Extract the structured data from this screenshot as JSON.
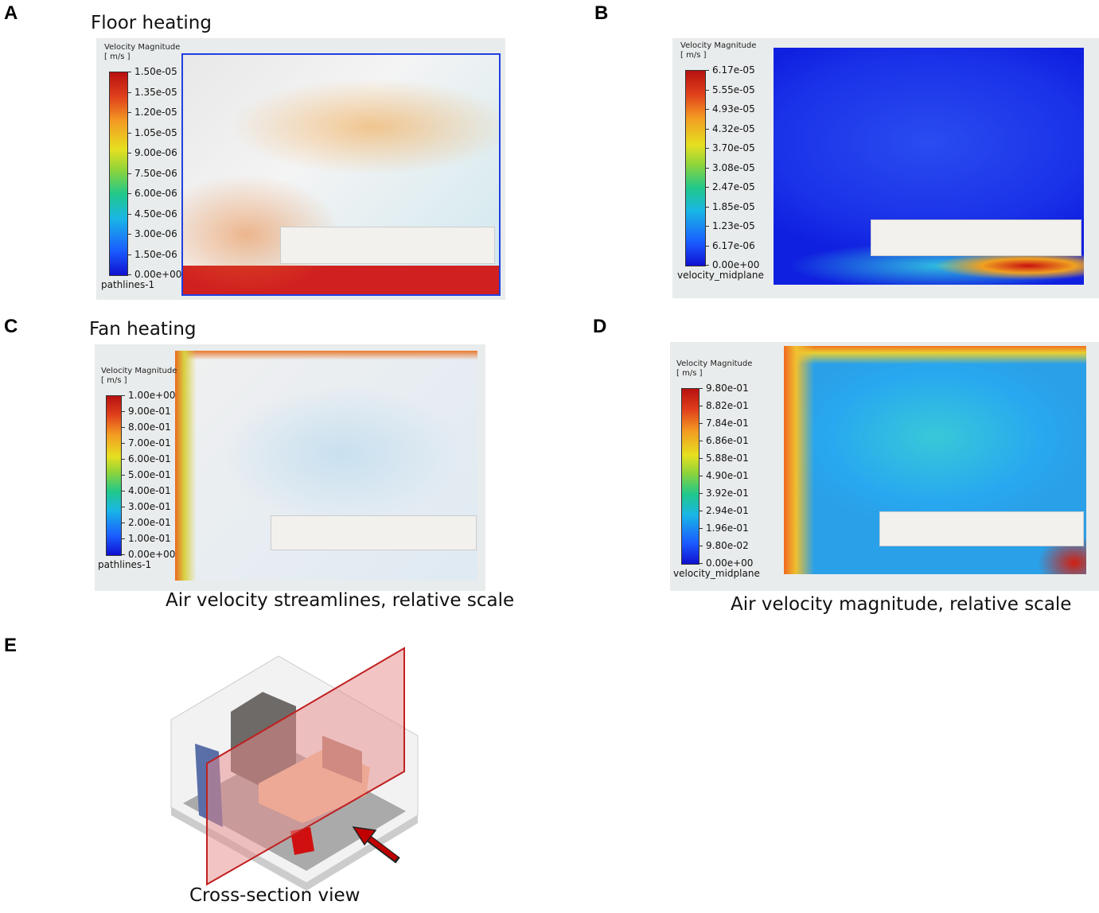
{
  "panels": {
    "A": {
      "letter": "A",
      "title": "Floor heating",
      "legend": {
        "title": "Velocity Magnitude",
        "unit": "[ m/s ]",
        "footer": "pathlines-1",
        "ticks": [
          "1.50e-05",
          "1.35e-05",
          "1.20e-05",
          "1.05e-05",
          "9.00e-06",
          "7.50e-06",
          "6.00e-06",
          "4.50e-06",
          "3.00e-06",
          "1.50e-06",
          "0.00e+00"
        ]
      }
    },
    "B": {
      "letter": "B",
      "legend": {
        "title": "Velocity Magnitude",
        "unit": "[ m/s ]",
        "footer": "velocity_midplane",
        "ticks": [
          "6.17e-05",
          "5.55e-05",
          "4.93e-05",
          "4.32e-05",
          "3.70e-05",
          "3.08e-05",
          "2.47e-05",
          "1.85e-05",
          "1.23e-05",
          "6.17e-06",
          "0.00e+00"
        ]
      }
    },
    "C": {
      "letter": "C",
      "title": "Fan heating",
      "legend": {
        "title": "Velocity Magnitude",
        "unit": "[ m/s ]",
        "footer": "pathlines-1",
        "ticks": [
          "1.00e+00",
          "9.00e-01",
          "8.00e-01",
          "7.00e-01",
          "6.00e-01",
          "5.00e-01",
          "4.00e-01",
          "3.00e-01",
          "2.00e-01",
          "1.00e-01",
          "0.00e+00"
        ]
      }
    },
    "D": {
      "letter": "D",
      "legend": {
        "title": "Velocity Magnitude",
        "unit": "[ m/s ]",
        "footer": "velocity_midplane",
        "ticks": [
          "9.80e-01",
          "8.82e-01",
          "7.84e-01",
          "6.86e-01",
          "5.88e-01",
          "4.90e-01",
          "3.92e-01",
          "2.94e-01",
          "1.96e-01",
          "9.80e-02",
          "0.00e+00"
        ]
      }
    },
    "E": {
      "letter": "E",
      "caption": "Cross-section view"
    }
  },
  "captions": {
    "streamlines": "Air velocity streamlines, relative scale",
    "magnitude": "Air velocity magnitude, relative scale"
  },
  "colors": {
    "section_plane": "#e88a8a",
    "arrow": "#c00000",
    "heater": "#d01010"
  }
}
